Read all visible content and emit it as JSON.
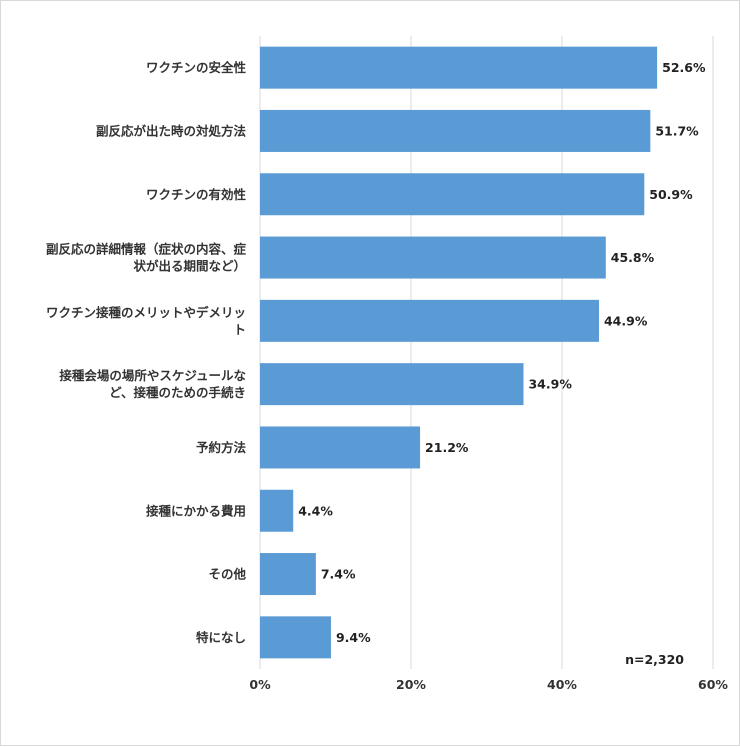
{
  "chart_data": {
    "type": "bar",
    "orientation": "horizontal",
    "categories": [
      [
        "ワクチンの安全性"
      ],
      [
        "副反応が出た時の対処方法"
      ],
      [
        "ワクチンの有効性"
      ],
      [
        "副反応の詳細情報（症状の内容、症",
        "状が出る期間など）"
      ],
      [
        "ワクチン接種のメリットやデメリッ",
        "ト"
      ],
      [
        "接種会場の場所やスケジュールな",
        "ど、接種のための手続き"
      ],
      [
        "予約方法"
      ],
      [
        "接種にかかる費用"
      ],
      [
        "その他"
      ],
      [
        "特になし"
      ]
    ],
    "values": [
      52.6,
      51.7,
      50.9,
      45.8,
      44.9,
      34.9,
      21.2,
      4.4,
      7.4,
      9.4
    ],
    "value_labels": [
      "52.6%",
      "51.7%",
      "50.9%",
      "45.8%",
      "44.9%",
      "34.9%",
      "21.2%",
      "4.4%",
      "7.4%",
      "9.4%"
    ],
    "xlim": [
      0,
      60
    ],
    "xticks": [
      0,
      20,
      40,
      60
    ],
    "xtick_labels": [
      "0%",
      "20%",
      "40%",
      "60%"
    ],
    "grid": true,
    "bar_color": "#5b9bd5",
    "annotation": "n=2,320"
  }
}
